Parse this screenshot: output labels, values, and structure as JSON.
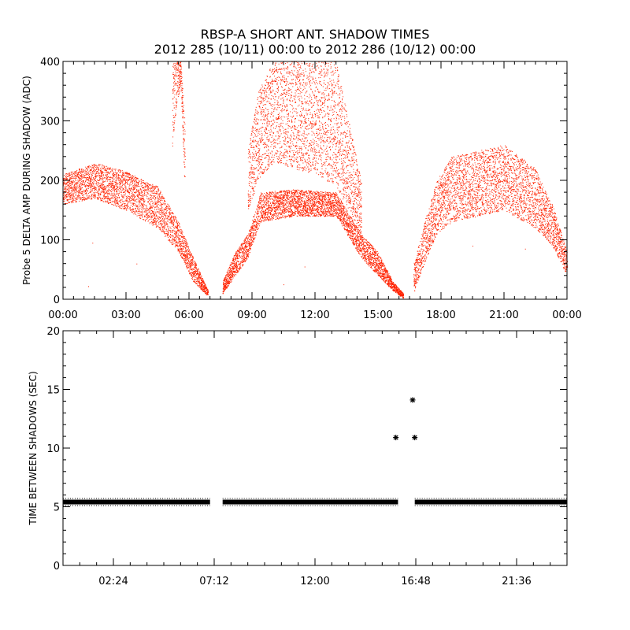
{
  "title_line1": "RBSP-A SHORT ANT. SHADOW TIMES",
  "title_line2": "2012 285 (10/11) 00:00 to 2012 286 (10/12) 00:00",
  "colors": {
    "scatter": "#ff2200",
    "marker": "#000000",
    "axis": "#000000"
  },
  "chart_data": [
    {
      "type": "scatter",
      "ylabel": "Probe 5 DELTA AMP DURING SHADOW (ADC)",
      "xlim": [
        0,
        24
      ],
      "ylim": [
        0,
        400
      ],
      "x_ticks": [
        0,
        3,
        6,
        9,
        12,
        15,
        18,
        21,
        24
      ],
      "x_tick_labels": [
        "00:00",
        "03:00",
        "06:00",
        "09:00",
        "12:00",
        "15:00",
        "18:00",
        "21:00",
        "00:00"
      ],
      "y_ticks": [
        0,
        100,
        200,
        300,
        400
      ],
      "y_tick_labels": [
        "0",
        "100",
        "200",
        "300",
        "400"
      ],
      "bands": [
        {
          "x": [
            0,
            1.5,
            3,
            4.5,
            5.5,
            6.2,
            6.9
          ],
          "low": [
            160,
            170,
            150,
            120,
            80,
            30,
            5
          ],
          "high": [
            210,
            230,
            215,
            190,
            130,
            70,
            15
          ]
        },
        {
          "x": [
            7.6,
            8.2,
            8.8,
            9.4,
            11,
            13,
            14.2,
            15,
            15.7,
            16.2
          ],
          "low": [
            10,
            40,
            70,
            130,
            140,
            140,
            70,
            40,
            15,
            2
          ],
          "high": [
            30,
            80,
            110,
            180,
            185,
            180,
            110,
            80,
            30,
            10
          ]
        },
        {
          "x": [
            8.8,
            9.3,
            10,
            12,
            13,
            13.6,
            14.2
          ],
          "low": [
            150,
            200,
            230,
            210,
            190,
            150,
            110
          ],
          "high": [
            250,
            350,
            400,
            400,
            400,
            300,
            200
          ]
        },
        {
          "x": [
            5.2,
            5.4,
            5.6,
            5.8
          ],
          "low": [
            250,
            330,
            360,
            180
          ],
          "high": [
            400,
            400,
            400,
            300
          ]
        },
        {
          "x": [
            16.7,
            17.2,
            17.8,
            18.5,
            21,
            22.5,
            23.3,
            24
          ],
          "low": [
            10,
            60,
            110,
            130,
            150,
            120,
            90,
            40
          ],
          "high": [
            60,
            130,
            200,
            240,
            260,
            220,
            160,
            80
          ]
        }
      ]
    },
    {
      "type": "scatter",
      "ylabel": "TIME BETWEEN SHADOWS (SEC)",
      "xlim": [
        0,
        24
      ],
      "ylim": [
        0,
        20
      ],
      "x_ticks": [
        2.4,
        7.2,
        12.0,
        16.8,
        21.6
      ],
      "x_tick_labels": [
        "02:24",
        "07:12",
        "12:00",
        "16:48",
        "21:36"
      ],
      "y_ticks": [
        0,
        5,
        10,
        15,
        20
      ],
      "y_tick_labels": [
        "0",
        "5",
        "10",
        "15",
        "20"
      ],
      "baseline_value": 5.4,
      "baseline_segments": [
        [
          0.0,
          7.0
        ],
        [
          7.6,
          15.95
        ],
        [
          16.75,
          24.0
        ]
      ],
      "outliers": [
        {
          "x": 15.85,
          "y": 10.9
        },
        {
          "x": 16.65,
          "y": 14.1
        },
        {
          "x": 16.75,
          "y": 10.9
        }
      ]
    }
  ]
}
